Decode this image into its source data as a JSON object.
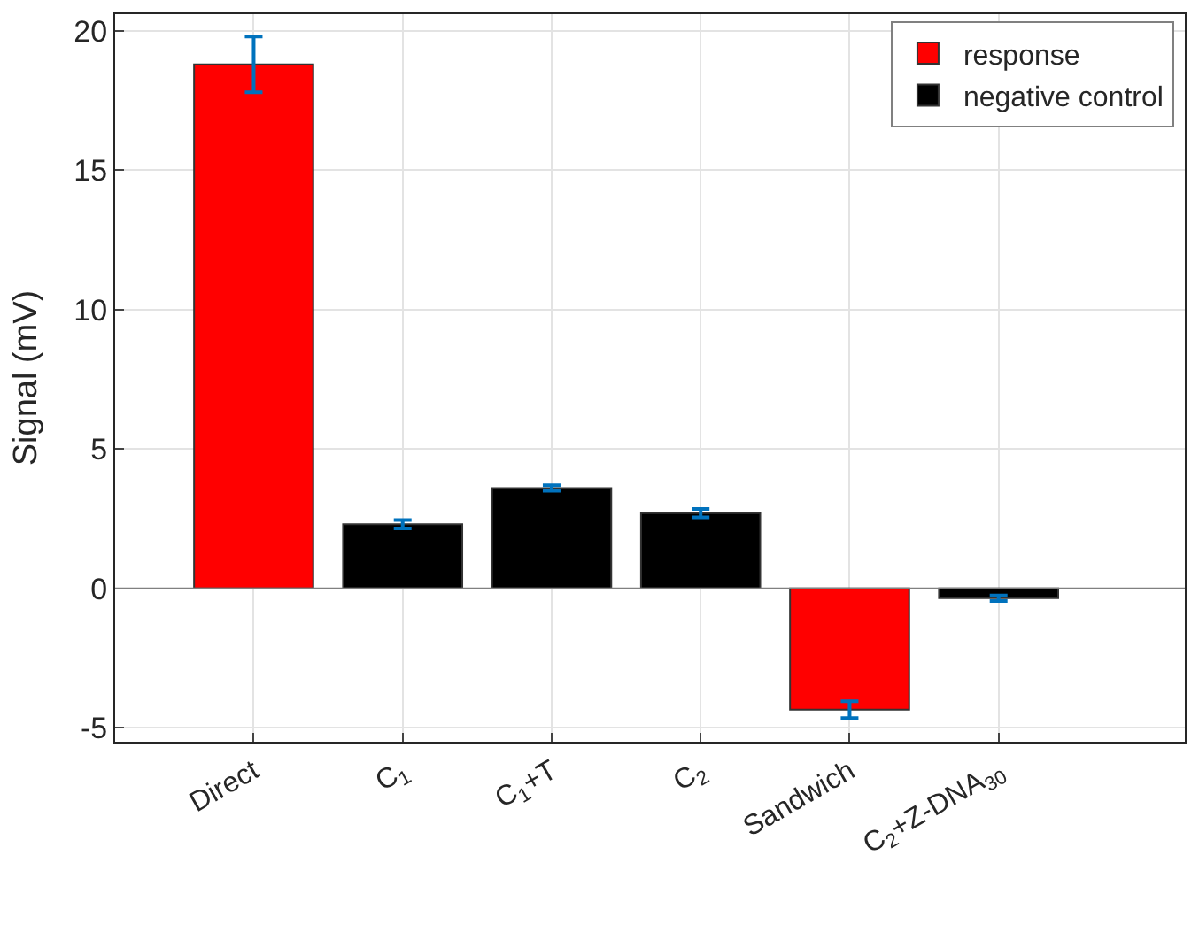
{
  "chart_data": {
    "type": "bar",
    "ylabel": "Signal (mV)",
    "categories": [
      "Direct",
      "C$_{1}$",
      "C$_{1}$+T",
      "C$_{2}$",
      "Sandwich",
      "C$_{2}$+Z-DNA$_{30}$"
    ],
    "stacked": true,
    "series": [
      {
        "name": "response",
        "color": "#ff0000",
        "values": [
          18.8,
          null,
          null,
          null,
          -4.35,
          null
        ],
        "errors": [
          1.0,
          null,
          null,
          null,
          0.3,
          null
        ]
      },
      {
        "name": "negative control",
        "color": "#000000",
        "values": [
          null,
          2.3,
          3.6,
          2.7,
          null,
          -0.35
        ],
        "errors": [
          null,
          0.15,
          0.1,
          0.15,
          null,
          0.1
        ]
      }
    ],
    "ylim": [
      -5.5,
      20.6
    ],
    "yticks": [
      -5,
      0,
      5,
      10,
      15,
      20
    ],
    "ref_lines": [
      {
        "axis": "y",
        "value": 0,
        "color": "#808080"
      }
    ],
    "grid": true,
    "legend": "top right"
  }
}
